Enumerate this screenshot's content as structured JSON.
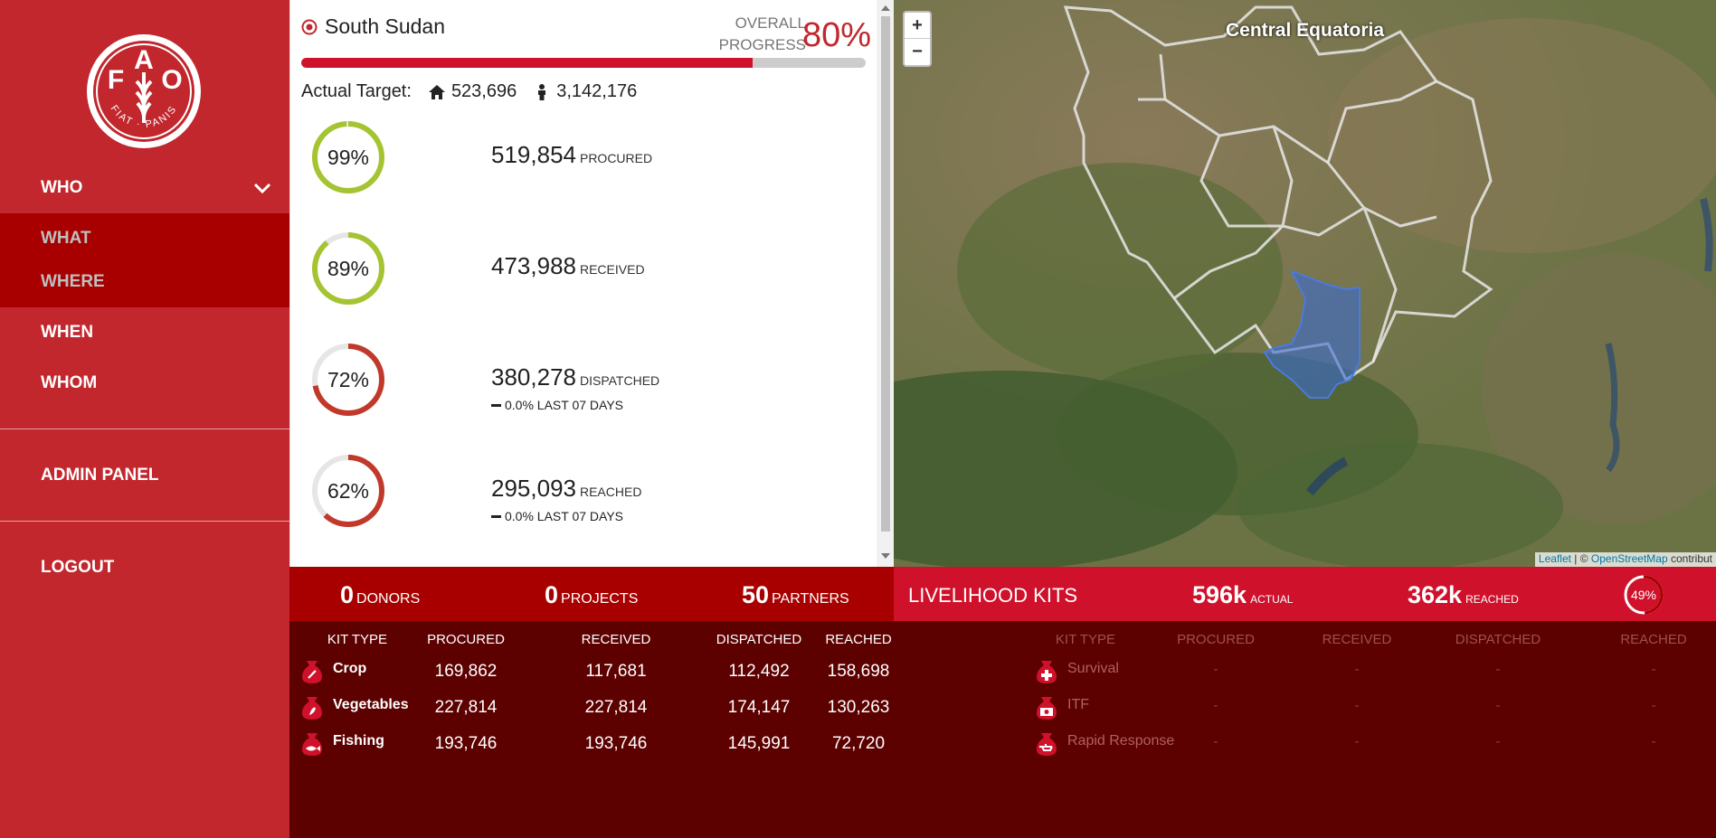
{
  "sidebar": {
    "nav": [
      {
        "label": "WHO"
      },
      {
        "label": "WHAT"
      },
      {
        "label": "WHERE"
      },
      {
        "label": "WHEN"
      },
      {
        "label": "WHOM"
      }
    ],
    "admin_label": "ADMIN PANEL",
    "logout_label": "LOGOUT",
    "logo_text": "FAO FIAT PANIS"
  },
  "panel": {
    "country": "South Sudan",
    "overall_label": "OVERALL PROGRESS",
    "overall_value": "80%",
    "overall_fraction": 0.8,
    "target_label": "Actual Target:",
    "households": "523,696",
    "people": "3,142,176",
    "stats": [
      {
        "percent": "99%",
        "fraction": 0.99,
        "value": "519,854",
        "unit": "PROCURED",
        "sub": "",
        "color": "#a4c431"
      },
      {
        "percent": "89%",
        "fraction": 0.89,
        "value": "473,988",
        "unit": "RECEIVED",
        "sub": "",
        "color": "#a4c431"
      },
      {
        "percent": "72%",
        "fraction": 0.72,
        "value": "380,278",
        "unit": "DISPATCHED",
        "sub": "0.0% LAST 07 DAYS",
        "color": "#c0392b"
      },
      {
        "percent": "62%",
        "fraction": 0.62,
        "value": "295,093",
        "unit": "REACHED",
        "sub": "0.0% LAST 07 DAYS",
        "color": "#c0392b"
      }
    ]
  },
  "map": {
    "region": "Central Equatoria",
    "zoom_in": "+",
    "zoom_out": "−",
    "attribution_leaflet": "Leaflet",
    "attribution_sep": " | © ",
    "attribution_osm": "OpenStreetMap",
    "attribution_rest": " contribut"
  },
  "summary": {
    "donors_value": "0",
    "donors_label": "DONORS",
    "projects_value": "0",
    "projects_label": "PROJECTS",
    "partners_value": "50",
    "partners_label": "PARTNERS",
    "kits_title": "LIVELIHOOD KITS",
    "actual_value": "596k",
    "actual_label": "ACTUAL",
    "reached_value": "362k",
    "reached_label": "REACHED",
    "reached_percent": "49%",
    "reached_fraction": 0.49
  },
  "table_left": {
    "headers": [
      "KIT TYPE",
      "PROCURED",
      "RECEIVED",
      "DISPATCHED",
      "REACHED"
    ],
    "rows": [
      {
        "kit": "Crop",
        "icon": "crop-kit-icon",
        "procured": "169,862",
        "received": "117,681",
        "dispatched": "112,492",
        "reached": "158,698"
      },
      {
        "kit": "Vegetables",
        "icon": "vegetables-kit-icon",
        "procured": "227,814",
        "received": "227,814",
        "dispatched": "174,147",
        "reached": "130,263"
      },
      {
        "kit": "Fishing",
        "icon": "fishing-kit-icon",
        "procured": "193,746",
        "received": "193,746",
        "dispatched": "145,991",
        "reached": "72,720"
      }
    ]
  },
  "table_right": {
    "headers": [
      "KIT TYPE",
      "PROCURED",
      "RECEIVED",
      "DISPATCHED",
      "REACHED"
    ],
    "rows": [
      {
        "kit": "Survival",
        "icon": "survival-kit-icon",
        "procured": "-",
        "received": "-",
        "dispatched": "-",
        "reached": "-"
      },
      {
        "kit": "ITF",
        "icon": "itf-kit-icon",
        "procured": "-",
        "received": "-",
        "dispatched": "-",
        "reached": "-"
      },
      {
        "kit": "Rapid Response",
        "icon": "rapid-response-kit-icon",
        "procured": "-",
        "received": "-",
        "dispatched": "-",
        "reached": "-"
      }
    ]
  },
  "colors": {
    "brand_red": "#c1272d",
    "accent_red": "#d0112b",
    "dark_red": "#5c0000",
    "band_red": "#a80000",
    "ring_green": "#a4c431"
  }
}
